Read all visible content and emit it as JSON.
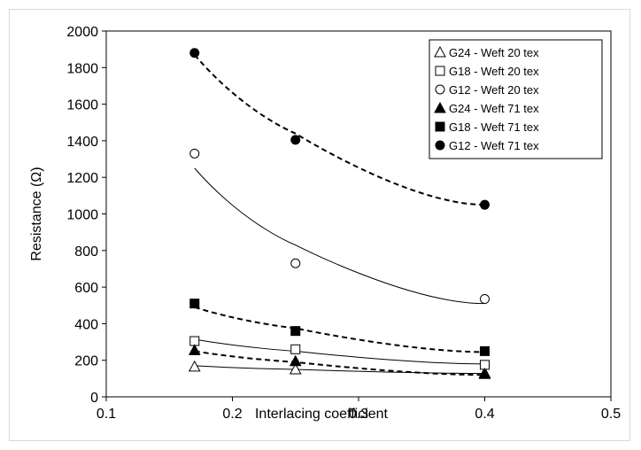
{
  "chart_data": {
    "type": "scatter",
    "xlabel": "Interlacing  coefficient",
    "ylabel": "Resistance (Ω)",
    "xlim": [
      0.1,
      0.5
    ],
    "ylim": [
      0,
      2000
    ],
    "x_ticks": [
      "0.1",
      "0.2",
      "0.3",
      "0.4",
      "0.5"
    ],
    "y_ticks": [
      "0",
      "200",
      "400",
      "600",
      "800",
      "1000",
      "1200",
      "1400",
      "1600",
      "1800",
      "2000"
    ],
    "grid": false,
    "legend_position": "top-right",
    "series": [
      {
        "name": "G24 - Weft 20 tex",
        "marker": "triangle-open",
        "trend": "solid",
        "x": [
          0.17,
          0.25,
          0.4
        ],
        "y": [
          165,
          150,
          130
        ],
        "trend_y": [
          170,
          150,
          128
        ]
      },
      {
        "name": "G18 - Weft 20 tex",
        "marker": "square-open",
        "trend": "solid",
        "x": [
          0.17,
          0.25,
          0.4
        ],
        "y": [
          305,
          260,
          175
        ],
        "trend_y": [
          315,
          250,
          180
        ]
      },
      {
        "name": "G12 - Weft 20 tex",
        "marker": "circle-open",
        "trend": "solid",
        "x": [
          0.17,
          0.25,
          0.4
        ],
        "y": [
          1330,
          730,
          535
        ],
        "trend_y": [
          1250,
          830,
          510
        ]
      },
      {
        "name": "G24 - Weft 71 tex",
        "marker": "triangle-filled",
        "trend": "dashed",
        "x": [
          0.17,
          0.25,
          0.4
        ],
        "y": [
          255,
          195,
          125
        ],
        "trend_y": [
          250,
          190,
          120
        ]
      },
      {
        "name": "G18 - Weft 71 tex",
        "marker": "square-filled",
        "trend": "dashed",
        "x": [
          0.17,
          0.25,
          0.4
        ],
        "y": [
          510,
          360,
          250
        ],
        "trend_y": [
          490,
          375,
          245
        ]
      },
      {
        "name": "G12 - Weft 71 tex",
        "marker": "circle-filled",
        "trend": "dashed",
        "x": [
          0.17,
          0.25,
          0.4
        ],
        "y": [
          1880,
          1405,
          1050
        ],
        "trend_y": [
          1870,
          1440,
          1050
        ]
      }
    ]
  }
}
